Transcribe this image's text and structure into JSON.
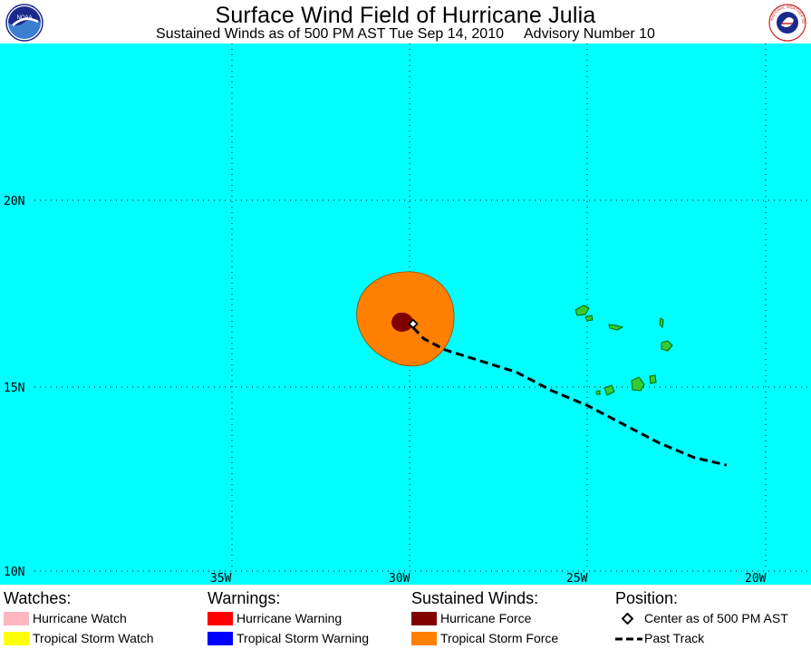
{
  "header": {
    "title": "Surface Wind Field of Hurricane Julia",
    "subtitle_time": "Sustained Winds as of 500 PM AST Tue Sep 14, 2010",
    "subtitle_advisory": "Advisory Number 10",
    "left_logo_text": "NOAA",
    "right_logo_text": "NATIONAL WEATHER SERVICE"
  },
  "map": {
    "ocean_color": "#00ffff",
    "land_color": "#33cc33",
    "lat_labels": [
      "20N",
      "15N",
      "10N"
    ],
    "lon_labels": [
      "35W",
      "30W",
      "25W",
      "20W"
    ],
    "lat_range": [
      9.9,
      24.3
    ],
    "lon_range": [
      -41.2,
      -19.0
    ],
    "grid": "dotted",
    "storm": {
      "center": {
        "lat": 16.7,
        "lon": -29.9
      },
      "tropical_storm_force_color": "#ff8000",
      "hurricane_force_color": "#800000"
    },
    "past_track": [
      {
        "lat": 16.6,
        "lon": -29.9
      },
      {
        "lat": 16.3,
        "lon": -29.6
      },
      {
        "lat": 16.0,
        "lon": -29.0
      },
      {
        "lat": 15.7,
        "lon": -28.0
      },
      {
        "lat": 15.4,
        "lon": -27.0
      },
      {
        "lat": 14.9,
        "lon": -26.0
      },
      {
        "lat": 14.5,
        "lon": -25.0
      },
      {
        "lat": 14.0,
        "lon": -24.0
      },
      {
        "lat": 13.5,
        "lon": -23.0
      },
      {
        "lat": 13.1,
        "lon": -22.0
      },
      {
        "lat": 12.9,
        "lon": -21.1
      }
    ]
  },
  "legend": {
    "watches": {
      "heading": "Watches:",
      "items": [
        {
          "label": "Hurricane Watch",
          "color": "#ffb6c1"
        },
        {
          "label": "Tropical Storm Watch",
          "color": "#ffff00"
        }
      ]
    },
    "warnings": {
      "heading": "Warnings:",
      "items": [
        {
          "label": "Hurricane Warning",
          "color": "#ff0000"
        },
        {
          "label": "Tropical Storm Warning",
          "color": "#0000ff"
        }
      ]
    },
    "winds": {
      "heading": "Sustained Winds:",
      "items": [
        {
          "label": "Hurricane Force",
          "color": "#800000"
        },
        {
          "label": "Tropical Storm Force",
          "color": "#ff8000"
        }
      ]
    },
    "position": {
      "heading": "Position:",
      "center_label": "Center as of 500 PM AST",
      "track_label": "Past Track"
    }
  }
}
